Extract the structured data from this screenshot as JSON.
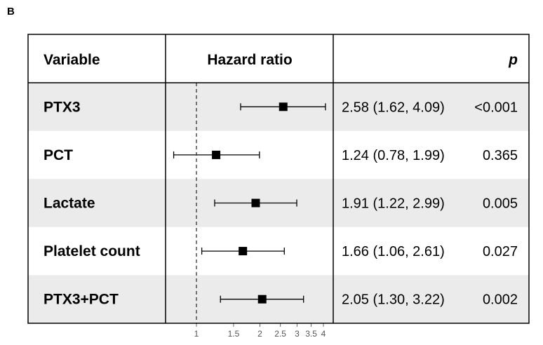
{
  "panel_label": "B",
  "header": {
    "variable": "Variable",
    "hazard_ratio": "Hazard ratio",
    "p": "p"
  },
  "chart_data": {
    "type": "forest",
    "xscale": "log",
    "xlim": [
      0.75,
      4.2
    ],
    "reference_line": 1,
    "xticks": [
      1,
      1.5,
      2,
      2.5,
      3,
      3.5,
      4
    ],
    "xtick_labels": [
      "1",
      "1.5",
      "2",
      "2.5",
      "3",
      "3.5",
      "4"
    ],
    "rows": [
      {
        "variable": "PTX3",
        "hr": 2.58,
        "lower": 1.62,
        "upper": 4.09,
        "ci_text": "2.58 (1.62, 4.09)",
        "p": "<0.001"
      },
      {
        "variable": "PCT",
        "hr": 1.24,
        "lower": 0.78,
        "upper": 1.99,
        "ci_text": "1.24 (0.78, 1.99)",
        "p": "0.365"
      },
      {
        "variable": "Lactate",
        "hr": 1.91,
        "lower": 1.22,
        "upper": 2.99,
        "ci_text": "1.91 (1.22, 2.99)",
        "p": "0.005"
      },
      {
        "variable": "Platelet count",
        "hr": 1.66,
        "lower": 1.06,
        "upper": 2.61,
        "ci_text": "1.66 (1.06, 2.61)",
        "p": "0.027"
      },
      {
        "variable": "PTX3+PCT",
        "hr": 2.05,
        "lower": 1.3,
        "upper": 3.22,
        "ci_text": "2.05 (1.30, 3.22)",
        "p": "0.002"
      }
    ]
  },
  "colors": {
    "stripe": "#ebebeb",
    "border": "#000000",
    "reference_line": "#333333"
  }
}
